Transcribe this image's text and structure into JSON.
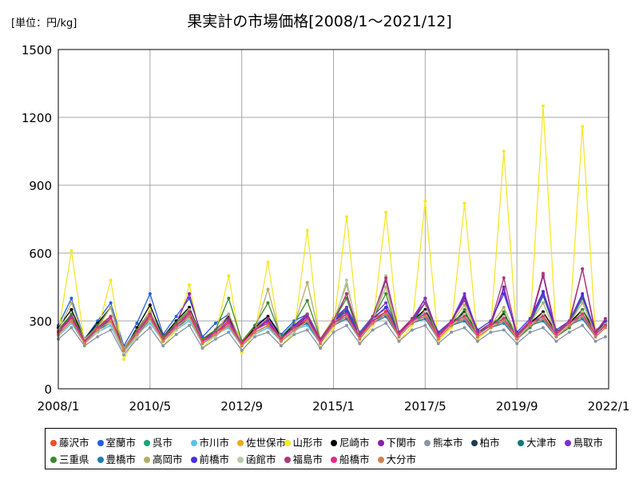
{
  "unit_label": "[単位：円/kg]",
  "chart_data": {
    "type": "line",
    "title": "果実計の市場価格[2008/1～2021/12]",
    "xlabel": "",
    "ylabel": "",
    "x_tick_labels": [
      "2008/1",
      "2010/5",
      "2012/9",
      "2015/1",
      "2017/5",
      "2019/9",
      "2022/1"
    ],
    "x_tick_dates": [
      "2008-01",
      "2010-05",
      "2012-09",
      "2015-01",
      "2017-05",
      "2019-09",
      "2022-01"
    ],
    "xlim": [
      "2008-01",
      "2022-01"
    ],
    "ylim": [
      0,
      1500
    ],
    "y_ticks": [
      0,
      300,
      600,
      900,
      1200,
      1500
    ],
    "grid": true,
    "legend_position": "bottom",
    "x": [
      "2008-01",
      "2008-05",
      "2008-09",
      "2009-01",
      "2009-05",
      "2009-09",
      "2010-01",
      "2010-05",
      "2010-09",
      "2011-01",
      "2011-05",
      "2011-09",
      "2012-01",
      "2012-05",
      "2012-09",
      "2013-01",
      "2013-05",
      "2013-09",
      "2014-01",
      "2014-05",
      "2014-09",
      "2015-01",
      "2015-05",
      "2015-09",
      "2016-01",
      "2016-05",
      "2016-09",
      "2017-01",
      "2017-05",
      "2017-09",
      "2018-01",
      "2018-05",
      "2018-09",
      "2019-01",
      "2019-05",
      "2019-09",
      "2020-01",
      "2020-05",
      "2020-09",
      "2021-01",
      "2021-05",
      "2021-09",
      "2021-12"
    ],
    "series": [
      {
        "name": "藤沢市",
        "color": "#e8502a",
        "values": [
          240,
          300,
          210,
          260,
          290,
          180,
          250,
          300,
          230,
          270,
          310,
          220,
          250,
          280,
          210,
          250,
          280,
          230,
          270,
          290,
          220,
          300,
          330,
          240,
          310,
          340,
          250,
          310,
          330,
          240,
          300,
          320,
          250,
          290,
          310,
          240,
          300,
          320,
          250,
          300,
          330,
          260,
          290
        ]
      },
      {
        "name": "室蘭市",
        "color": "#2060e0",
        "values": [
          280,
          400,
          220,
          300,
          380,
          190,
          290,
          420,
          240,
          320,
          400,
          230,
          290,
          330,
          200,
          280,
          320,
          240,
          300,
          330,
          220,
          310,
          360,
          250,
          320,
          350,
          240,
          300,
          340,
          230,
          290,
          330,
          240,
          280,
          320,
          230,
          290,
          330,
          240,
          290,
          330,
          240,
          280
        ]
      },
      {
        "name": "呉市",
        "color": "#1aa37a",
        "values": [
          250,
          310,
          210,
          270,
          300,
          170,
          250,
          310,
          220,
          280,
          320,
          210,
          250,
          290,
          200,
          260,
          290,
          220,
          270,
          300,
          210,
          290,
          320,
          230,
          300,
          330,
          240,
          300,
          320,
          230,
          290,
          310,
          240,
          280,
          300,
          230,
          290,
          310,
          240,
          290,
          320,
          240,
          280
        ]
      },
      {
        "name": "市川市",
        "color": "#5bc0f0",
        "values": [
          230,
          290,
          200,
          250,
          280,
          160,
          240,
          290,
          210,
          260,
          300,
          200,
          240,
          270,
          190,
          240,
          270,
          210,
          260,
          280,
          200,
          280,
          310,
          220,
          290,
          320,
          230,
          290,
          310,
          220,
          280,
          300,
          230,
          270,
          290,
          220,
          280,
          300,
          230,
          280,
          310,
          230,
          270
        ]
      },
      {
        "name": "佐世保市",
        "color": "#f0a820",
        "values": [
          260,
          330,
          220,
          280,
          320,
          180,
          260,
          340,
          230,
          290,
          340,
          220,
          260,
          300,
          210,
          270,
          300,
          230,
          280,
          310,
          220,
          310,
          340,
          240,
          320,
          350,
          250,
          310,
          340,
          240,
          300,
          320,
          250,
          290,
          320,
          240,
          300,
          330,
          250,
          300,
          340,
          250,
          290
        ]
      },
      {
        "name": "山形市",
        "color": "#f7e72a",
        "values": [
          250,
          610,
          200,
          260,
          480,
          130,
          240,
          350,
          190,
          260,
          460,
          180,
          240,
          500,
          160,
          250,
          560,
          190,
          250,
          700,
          180,
          270,
          760,
          200,
          280,
          780,
          210,
          280,
          830,
          210,
          270,
          820,
          220,
          270,
          1050,
          220,
          280,
          1250,
          230,
          270,
          1160,
          240,
          300
        ]
      },
      {
        "name": "尼崎市",
        "color": "#000000",
        "values": [
          270,
          350,
          220,
          290,
          360,
          170,
          270,
          370,
          230,
          300,
          360,
          220,
          260,
          320,
          200,
          270,
          320,
          230,
          280,
          330,
          220,
          300,
          350,
          240,
          310,
          360,
          250,
          300,
          350,
          240,
          290,
          340,
          250,
          280,
          330,
          240,
          290,
          340,
          250,
          290,
          350,
          250,
          290
        ]
      },
      {
        "name": "下関市",
        "color": "#8a1fa8",
        "values": [
          260,
          320,
          220,
          270,
          320,
          170,
          260,
          340,
          220,
          290,
          420,
          210,
          260,
          310,
          200,
          260,
          310,
          220,
          270,
          320,
          210,
          290,
          420,
          230,
          310,
          480,
          240,
          300,
          400,
          230,
          290,
          410,
          240,
          280,
          450,
          230,
          290,
          500,
          240,
          290,
          530,
          240,
          310
        ]
      },
      {
        "name": "熊本市",
        "color": "#8a95a5",
        "values": [
          220,
          270,
          190,
          230,
          260,
          150,
          220,
          270,
          190,
          240,
          280,
          180,
          220,
          250,
          170,
          230,
          250,
          190,
          240,
          260,
          180,
          250,
          280,
          200,
          260,
          290,
          210,
          260,
          280,
          200,
          250,
          270,
          210,
          250,
          260,
          200,
          250,
          270,
          210,
          250,
          280,
          210,
          230
        ]
      },
      {
        "name": "柏市",
        "color": "#1f3a4a",
        "values": [
          250,
          320,
          210,
          270,
          310,
          170,
          250,
          320,
          220,
          280,
          330,
          210,
          250,
          290,
          200,
          260,
          290,
          220,
          270,
          300,
          210,
          290,
          330,
          230,
          300,
          340,
          240,
          300,
          330,
          230,
          290,
          320,
          240,
          280,
          310,
          230,
          290,
          320,
          240,
          290,
          330,
          240,
          280
        ]
      },
      {
        "name": "大津市",
        "color": "#12787a",
        "values": [
          240,
          330,
          210,
          260,
          310,
          170,
          250,
          320,
          220,
          280,
          340,
          210,
          250,
          290,
          200,
          260,
          290,
          220,
          270,
          310,
          210,
          300,
          350,
          240,
          310,
          360,
          250,
          300,
          340,
          240,
          290,
          330,
          250,
          280,
          320,
          240,
          290,
          410,
          250,
          290,
          400,
          250,
          280
        ]
      },
      {
        "name": "鳥取市",
        "color": "#7b2fc8",
        "values": [
          250,
          310,
          210,
          270,
          310,
          170,
          250,
          320,
          220,
          280,
          330,
          210,
          250,
          290,
          200,
          260,
          300,
          220,
          280,
          330,
          220,
          300,
          360,
          240,
          320,
          380,
          250,
          310,
          400,
          240,
          300,
          420,
          250,
          290,
          440,
          240,
          300,
          420,
          250,
          300,
          410,
          250,
          300
        ]
      },
      {
        "name": "三重県",
        "color": "#3a8a2a",
        "values": [
          260,
          330,
          220,
          280,
          360,
          180,
          260,
          340,
          230,
          290,
          350,
          220,
          260,
          400,
          210,
          280,
          380,
          230,
          290,
          390,
          220,
          300,
          400,
          230,
          310,
          420,
          230,
          290,
          380,
          220,
          280,
          350,
          230,
          270,
          340,
          220,
          270,
          330,
          230,
          270,
          350,
          230,
          270
        ]
      },
      {
        "name": "豊橋市",
        "color": "#1f7ab8",
        "values": [
          240,
          300,
          210,
          260,
          290,
          170,
          240,
          300,
          220,
          270,
          310,
          210,
          240,
          280,
          190,
          250,
          280,
          210,
          260,
          290,
          200,
          280,
          310,
          220,
          290,
          320,
          230,
          290,
          310,
          220,
          280,
          300,
          230,
          270,
          290,
          220,
          280,
          300,
          230,
          280,
          310,
          230,
          270
        ]
      },
      {
        "name": "高岡市",
        "color": "#b5ad6a",
        "values": [
          260,
          380,
          220,
          270,
          360,
          180,
          250,
          340,
          220,
          270,
          350,
          210,
          250,
          330,
          200,
          260,
          440,
          220,
          280,
          470,
          220,
          300,
          460,
          240,
          310,
          450,
          240,
          300,
          380,
          230,
          290,
          370,
          240,
          280,
          360,
          230,
          290,
          380,
          240,
          290,
          380,
          240,
          290
        ]
      },
      {
        "name": "前橋市",
        "color": "#4430e0",
        "values": [
          250,
          320,
          210,
          270,
          310,
          170,
          250,
          320,
          220,
          280,
          330,
          210,
          250,
          290,
          200,
          260,
          300,
          220,
          280,
          320,
          220,
          300,
          340,
          240,
          310,
          360,
          250,
          300,
          380,
          250,
          300,
          400,
          260,
          300,
          420,
          250,
          310,
          430,
          260,
          300,
          420,
          250,
          300
        ]
      },
      {
        "name": "函館市",
        "color": "#b8c8a8",
        "values": [
          230,
          300,
          200,
          250,
          290,
          160,
          230,
          300,
          210,
          260,
          310,
          200,
          230,
          280,
          190,
          240,
          280,
          210,
          250,
          300,
          200,
          280,
          480,
          220,
          300,
          500,
          230,
          290,
          340,
          220,
          280,
          330,
          230,
          270,
          320,
          220,
          280,
          330,
          230,
          280,
          340,
          230,
          270
        ]
      },
      {
        "name": "福島市",
        "color": "#a83a78",
        "values": [
          250,
          320,
          210,
          270,
          320,
          170,
          250,
          330,
          220,
          280,
          340,
          210,
          250,
          300,
          200,
          260,
          310,
          220,
          270,
          330,
          220,
          300,
          420,
          240,
          320,
          490,
          250,
          310,
          380,
          240,
          300,
          390,
          250,
          290,
          490,
          240,
          300,
          510,
          250,
          300,
          530,
          250,
          310
        ]
      },
      {
        "name": "船橋市",
        "color": "#e82a8a",
        "values": [
          250,
          310,
          210,
          270,
          310,
          170,
          250,
          320,
          220,
          280,
          330,
          210,
          250,
          290,
          200,
          260,
          290,
          220,
          270,
          310,
          210,
          290,
          330,
          230,
          300,
          340,
          240,
          300,
          330,
          230,
          290,
          320,
          240,
          280,
          310,
          230,
          290,
          320,
          240,
          290,
          330,
          240,
          280
        ]
      },
      {
        "name": "大分市",
        "color": "#d08050",
        "values": [
          240,
          300,
          200,
          260,
          300,
          170,
          240,
          310,
          210,
          270,
          320,
          200,
          240,
          280,
          190,
          250,
          280,
          210,
          260,
          300,
          200,
          280,
          320,
          220,
          290,
          330,
          230,
          290,
          320,
          220,
          280,
          310,
          230,
          270,
          300,
          220,
          280,
          310,
          230,
          280,
          320,
          230,
          270
        ]
      }
    ]
  }
}
